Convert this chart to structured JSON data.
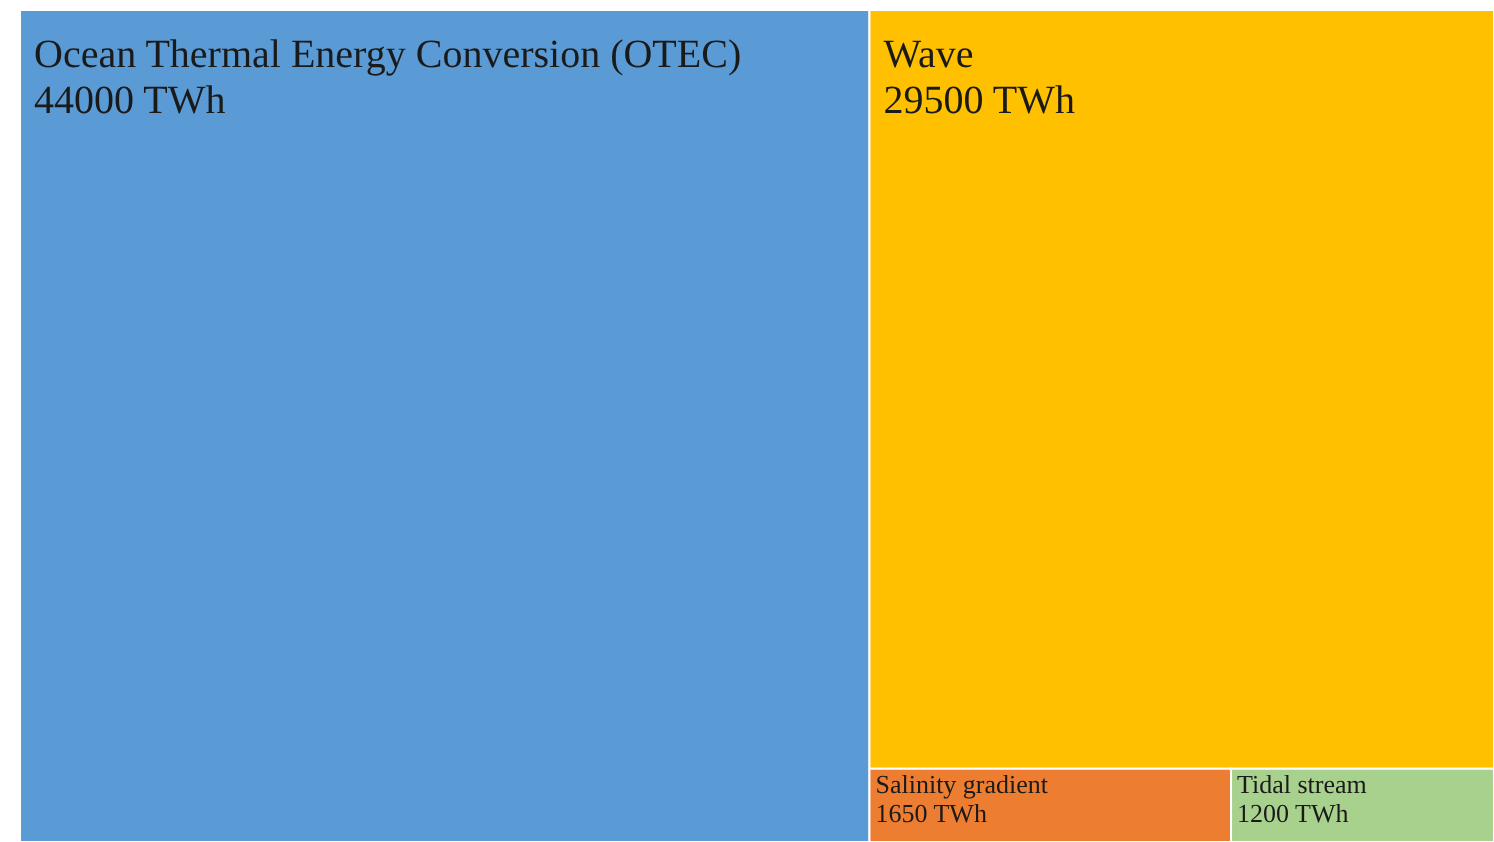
{
  "chart_data": {
    "type": "other",
    "categories": [
      "Ocean Thermal Energy Conversion (OTEC)",
      "Wave",
      "Salinity gradient",
      "Tidal stream"
    ],
    "values": [
      44000,
      29500,
      1650,
      1200
    ],
    "value_labels": [
      "44000 TWh",
      "29500 TWh",
      "1650 TWh",
      "1200 TWh"
    ],
    "colors": [
      "#5b9bd5",
      "#ffc000",
      "#ed7d31",
      "#a9d18e"
    ]
  }
}
